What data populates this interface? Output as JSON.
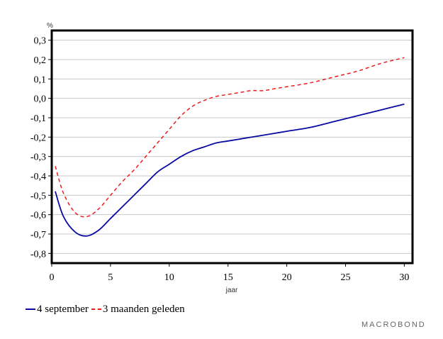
{
  "chart_data": {
    "type": "line",
    "ylabel": "%",
    "xlabel": "jaar",
    "xlim": [
      0,
      30.7
    ],
    "ylim": [
      -0.85,
      0.35
    ],
    "x_ticks": [
      0,
      5,
      10,
      15,
      20,
      25,
      30
    ],
    "y_ticks": [
      0.3,
      0.2,
      0.1,
      0.0,
      -0.1,
      -0.2,
      -0.3,
      -0.4,
      -0.5,
      -0.6,
      -0.7,
      -0.8
    ],
    "y_tick_labels": [
      "0,3",
      "0,2",
      "0,1",
      "0,0",
      "-0,1",
      "-0,2",
      "-0,3",
      "-0,4",
      "-0,5",
      "-0,6",
      "-0,7",
      "-0,8"
    ],
    "x_tick_labels": [
      "0",
      "5",
      "10",
      "15",
      "20",
      "25",
      "30"
    ],
    "grid": "horizontal",
    "legend_position": "bottom-left",
    "series": [
      {
        "name": "4 september",
        "color": "#0a0aa0",
        "dash": "solid",
        "points": [
          [
            0.3,
            -0.48
          ],
          [
            1,
            -0.61
          ],
          [
            2,
            -0.69
          ],
          [
            3,
            -0.71
          ],
          [
            4,
            -0.68
          ],
          [
            5,
            -0.62
          ],
          [
            6,
            -0.56
          ],
          [
            7,
            -0.5
          ],
          [
            8,
            -0.44
          ],
          [
            9,
            -0.38
          ],
          [
            10,
            -0.34
          ],
          [
            11,
            -0.3
          ],
          [
            12,
            -0.27
          ],
          [
            13,
            -0.25
          ],
          [
            14,
            -0.23
          ],
          [
            15,
            -0.22
          ],
          [
            16,
            -0.21
          ],
          [
            17,
            -0.2
          ],
          [
            18,
            -0.19
          ],
          [
            19,
            -0.18
          ],
          [
            20,
            -0.17
          ],
          [
            22,
            -0.15
          ],
          [
            24,
            -0.12
          ],
          [
            26,
            -0.09
          ],
          [
            28,
            -0.06
          ],
          [
            30,
            -0.03
          ]
        ]
      },
      {
        "name": "3 maanden geleden",
        "color": "#ee1c1c",
        "dash": "dashed",
        "points": [
          [
            0.3,
            -0.35
          ],
          [
            1,
            -0.49
          ],
          [
            2,
            -0.59
          ],
          [
            3,
            -0.61
          ],
          [
            4,
            -0.57
          ],
          [
            5,
            -0.5
          ],
          [
            6,
            -0.43
          ],
          [
            7,
            -0.37
          ],
          [
            8,
            -0.3
          ],
          [
            9,
            -0.23
          ],
          [
            10,
            -0.16
          ],
          [
            11,
            -0.09
          ],
          [
            12,
            -0.04
          ],
          [
            13,
            -0.01
          ],
          [
            14,
            0.01
          ],
          [
            15,
            0.02
          ],
          [
            16,
            0.03
          ],
          [
            17,
            0.04
          ],
          [
            18,
            0.04
          ],
          [
            19,
            0.05
          ],
          [
            20,
            0.06
          ],
          [
            22,
            0.08
          ],
          [
            24,
            0.11
          ],
          [
            26,
            0.14
          ],
          [
            28,
            0.18
          ],
          [
            30,
            0.21
          ]
        ]
      }
    ]
  },
  "legend": {
    "series1": "4 september",
    "series2": "3 maanden geleden"
  },
  "brand": {
    "text": "MACROBOND"
  }
}
